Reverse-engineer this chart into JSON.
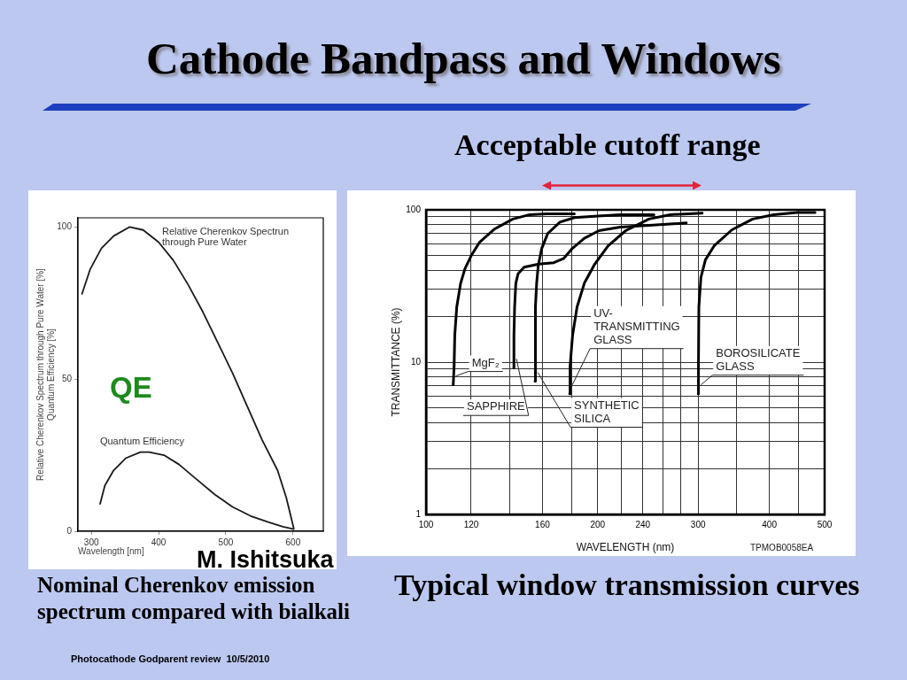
{
  "chart_data": [
    {
      "type": "line",
      "title": "Cathode Bandpass and Windows",
      "xlabel": "Wavelength [nm]",
      "ylabel": "Relative Cherenkov Spectrum through Pure Water [%]\nQuantum Efficiency [%]",
      "xlim": [
        280,
        645
      ],
      "xticks": [
        300,
        400,
        500,
        600
      ],
      "ylim": [
        0,
        103
      ],
      "yticks": [
        0,
        50,
        100
      ],
      "series": [
        {
          "name": "Relative Cherenkov Spectrun through Pure Water",
          "color": "#1a1a1a",
          "x": [
            286,
            298,
            315,
            333,
            357,
            377,
            400,
            422,
            444,
            466,
            488,
            510,
            532,
            554,
            577,
            590,
            601
          ],
          "values": [
            78,
            86,
            93,
            97,
            100,
            99,
            95,
            89,
            81,
            72,
            62,
            52,
            41,
            30,
            20,
            11,
            1
          ]
        },
        {
          "name": "Quantum Efficiency",
          "color": "#1a1a1a",
          "x": [
            313,
            320,
            333,
            351,
            373,
            386,
            408,
            430,
            457,
            484,
            510,
            537,
            563,
            585,
            601
          ],
          "values": [
            9,
            15,
            20,
            24,
            26,
            26,
            25,
            22,
            17,
            12,
            8,
            5,
            3,
            1.5,
            0.7
          ]
        }
      ],
      "annotations": [
        "QE",
        "M. Ishitsuka",
        "Nominal Cherenkov emission spectrum compared with bialkali",
        "Photocathode Godparent review  10/5/2010"
      ]
    },
    {
      "type": "line",
      "xlabel": "WAVELENGTH (nm)",
      "ylabel": "TRANSMITTANCE (%)",
      "log": "xy",
      "grid": true,
      "xlim": [
        100,
        500
      ],
      "xticks": [
        100,
        120,
        {
          "value": 140,
          "label": null
        },
        160,
        {
          "value": 180,
          "label": null
        },
        200,
        {
          "value": 220,
          "label": null
        },
        240,
        {
          "value": 260,
          "label": null
        },
        {
          "value": 280,
          "label": null
        },
        300,
        {
          "value": 350,
          "label": null
        },
        400,
        {
          "value": 450,
          "label": null
        },
        500
      ],
      "ylim": [
        1,
        100
      ],
      "yticks": [
        1,
        {
          "value": 2,
          "label": null
        },
        {
          "value": 3,
          "label": null
        },
        {
          "value": 4,
          "label": null
        },
        {
          "value": 5,
          "label": null
        },
        {
          "value": 6,
          "label": null
        },
        {
          "value": 7,
          "label": null
        },
        {
          "value": 8,
          "label": null
        },
        {
          "value": 9,
          "label": null
        },
        10,
        {
          "value": 20,
          "label": null
        },
        {
          "value": 30,
          "label": null
        },
        {
          "value": 40,
          "label": null
        },
        {
          "value": 50,
          "label": null
        },
        {
          "value": 60,
          "label": null
        },
        {
          "value": 70,
          "label": null
        },
        {
          "value": 80,
          "label": null
        },
        {
          "value": 90,
          "label": null
        },
        100
      ],
      "series": [
        {
          "name": "MgF₂",
          "color": "#000000",
          "x": [
            111.6,
            112.0,
            112.3,
            113.2,
            115,
            117,
            120,
            124,
            132,
            142,
            152,
            163,
            182
          ],
          "values": [
            7.1,
            9.4,
            15,
            23,
            33,
            41,
            50,
            61,
            75,
            87,
            93,
            94,
            94
          ]
        },
        {
          "name": "SAPPHIRE",
          "color": "#000000",
          "x": [
            142.5,
            142.6,
            143.0,
            143.7,
            145,
            148.6,
            157.6,
            167.5,
            174.4,
            180.7,
            189.5,
            201,
            219,
            246,
            286
          ],
          "values": [
            9.2,
            15,
            23,
            33,
            38,
            42,
            44,
            45,
            48,
            56,
            65,
            73,
            77,
            79,
            82
          ]
        },
        {
          "name": "SYNTHETIC SILICA",
          "color": "#000000",
          "x": [
            155.3,
            155.4,
            155.5,
            155.7,
            156.3,
            157.3,
            159.6,
            163.5,
            171.7,
            182,
            200,
            219,
            251
          ],
          "values": [
            7.5,
            9.4,
            15,
            23,
            33,
            43,
            56,
            70,
            83,
            89,
            91,
            93,
            93
          ]
        },
        {
          "name": "UV-TRANSMITTING GLASS",
          "color": "#000000",
          "x": [
            178.6,
            178.9,
            180.7,
            184,
            189.5,
            197.6,
            208.6,
            224,
            246,
            268,
            305
          ],
          "values": [
            6.2,
            9.4,
            15,
            23,
            33,
            44,
            58,
            73,
            87,
            93,
            95
          ]
        },
        {
          "name": "BOROSILICATE GLASS",
          "color": "#000000",
          "x": [
            300.1,
            300.4,
            300.9,
            303.4,
            309,
            320,
            344,
            374,
            407,
            448,
            481
          ],
          "values": [
            6.2,
            9.4,
            23,
            36,
            47,
            58,
            74,
            87,
            93,
            96,
            96
          ]
        }
      ],
      "annotations": [
        "Acceptable cutoff range",
        "Typical window transmission curves",
        "TPMOB0058EA"
      ]
    }
  ]
}
